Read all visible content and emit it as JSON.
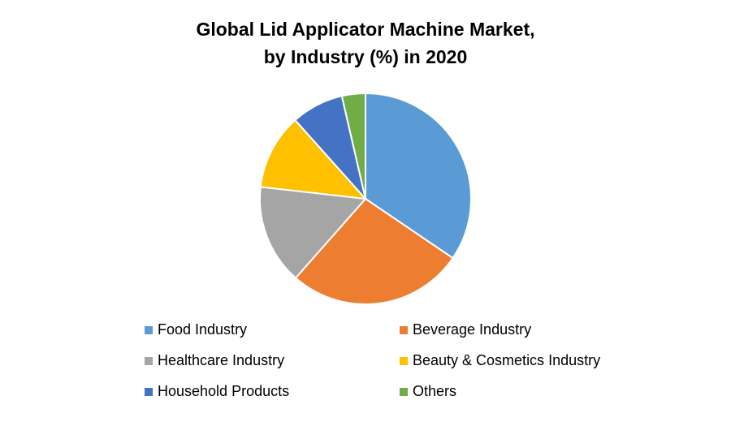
{
  "chart_data": {
    "type": "pie",
    "title": [
      "Global Lid Applicator Machine Market,",
      "by Industry (%) in 2020"
    ],
    "categories": [
      "Food Industry",
      "Beverage Industry",
      "Healthcare Industry",
      "Beauty & Cosmetics Industry",
      "Household Products",
      "Others"
    ],
    "values": [
      34.5,
      27,
      15.3,
      11.6,
      8,
      3.6
    ],
    "colors": [
      "#5b9bd5",
      "#ed7d31",
      "#a5a5a5",
      "#ffc000",
      "#4472c4",
      "#70ad47"
    ],
    "legend": "bottom"
  }
}
